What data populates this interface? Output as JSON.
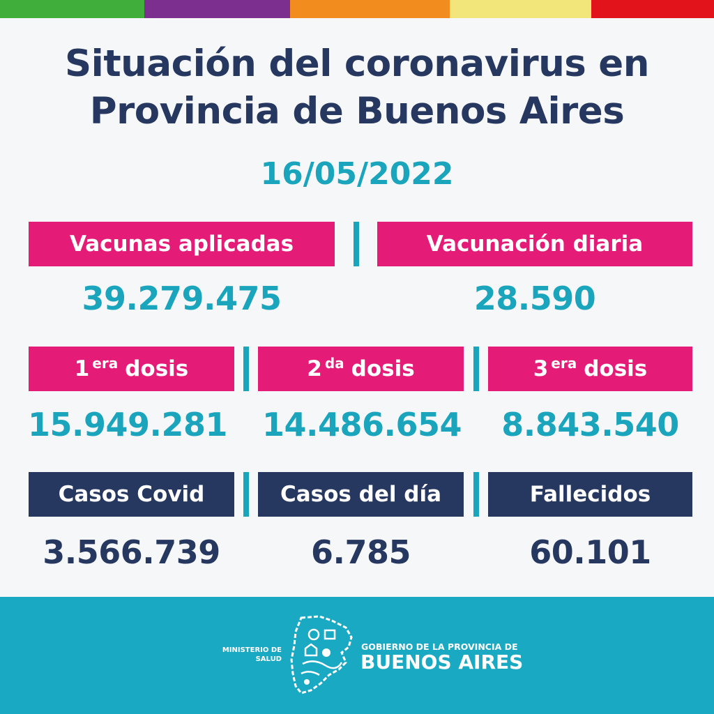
{
  "colors": {
    "stripe": [
      "#3fae3a",
      "#7c2f8e",
      "#f28c1f",
      "#f2e57a",
      "#e3131b"
    ],
    "navy": "#263760",
    "pink": "#e41c77",
    "teal": "#1ba5bd"
  },
  "header": {
    "title_line1": "Situación del coronavirus en",
    "title_line2": "Provincia de Buenos Aires",
    "date": "16/05/2022"
  },
  "vaccination": {
    "applied_label": "Vacunas aplicadas",
    "applied_value": "39.279.475",
    "daily_label": "Vacunación diaria",
    "daily_value": "28.590"
  },
  "doses": [
    {
      "num": "1",
      "suffix": "era",
      "word": "dosis",
      "value": "15.949.281"
    },
    {
      "num": "2",
      "suffix": "da",
      "word": "dosis",
      "value": "14.486.654"
    },
    {
      "num": "3",
      "suffix": "era",
      "word": "dosis",
      "value": "8.843.540"
    }
  ],
  "cases": [
    {
      "label": "Casos Covid",
      "value": "3.566.739"
    },
    {
      "label": "Casos del día",
      "value": "6.785"
    },
    {
      "label": "Fallecidos",
      "value": "60.101"
    }
  ],
  "footer": {
    "ministry_line1": "MINISTERIO DE",
    "ministry_line2": "SALUD",
    "gov_line1": "GOBIERNO DE LA PROVINCIA DE",
    "gov_line2": "BUENOS AIRES",
    "logo_icon": "province-map-emblem-icon"
  }
}
